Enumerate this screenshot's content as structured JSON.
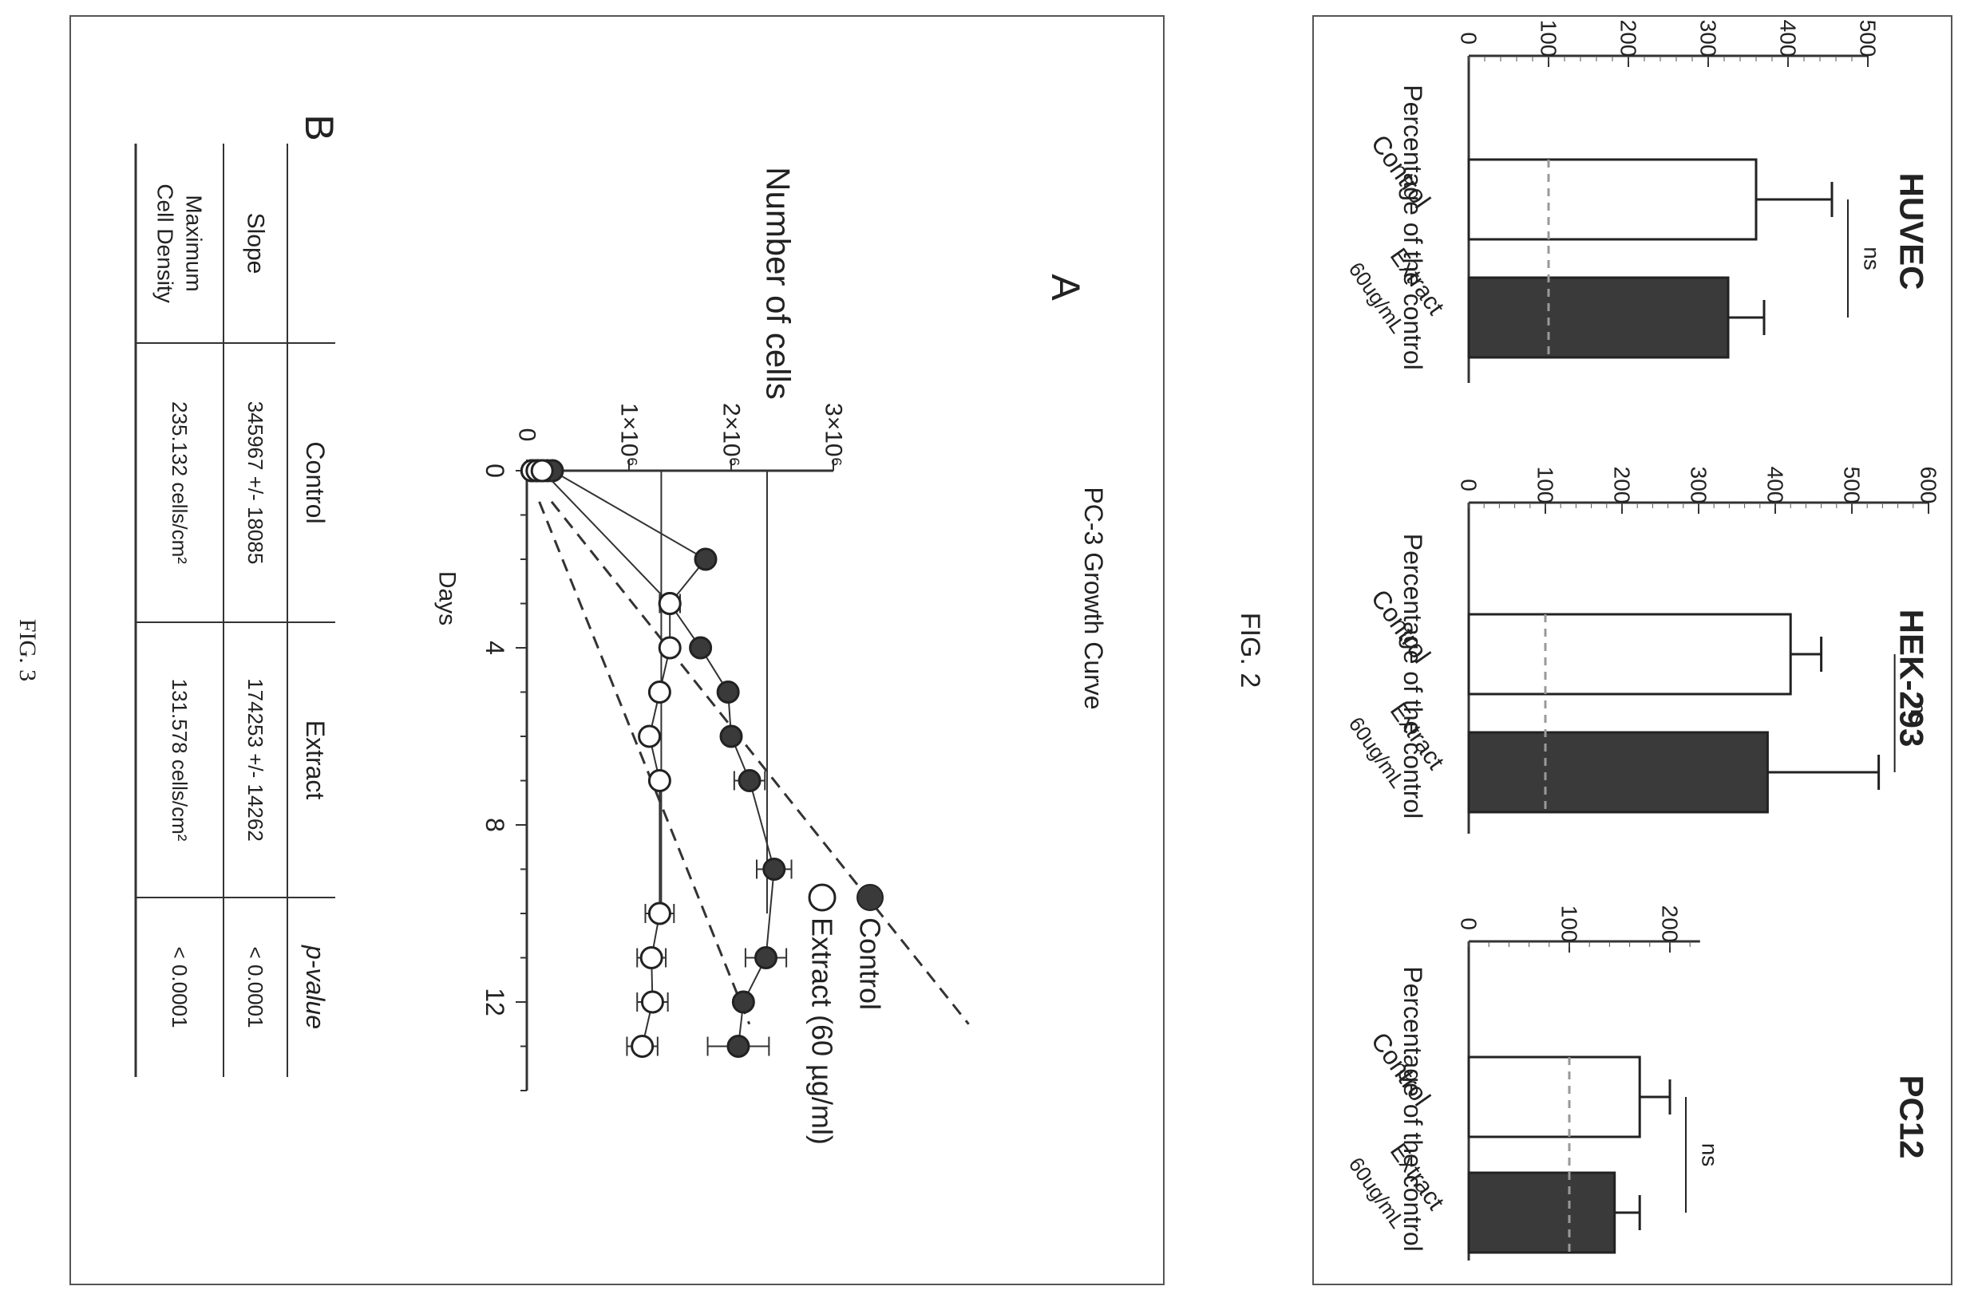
{
  "fig2": {
    "label": "FIG. 2",
    "y_axis_label": "Percentage of the control",
    "category_labels": [
      "Control",
      "Extract",
      "60ug/mL"
    ],
    "significance": "ns"
  },
  "fig3": {
    "label": "FIG. 3",
    "panel_a": "A",
    "panel_b": "B",
    "legend": {
      "control": "Control",
      "extract": "Extract (60 µg/ml)"
    },
    "table": {
      "headers": [
        "",
        "Control",
        "Extract",
        "p-value"
      ],
      "rows": [
        [
          "Slope",
          "345967 +/- 18085",
          "174253 +/- 14262",
          "< 0.0001"
        ],
        [
          "Maximum Cell Density",
          "235.132 cells/cm²",
          "131.578 cells/cm²",
          "< 0.0001"
        ]
      ]
    }
  },
  "chart_data": [
    {
      "type": "bar",
      "title": "HUVEC",
      "ylabel": "Percentage of the control",
      "categories": [
        "Control",
        "Extract 60ug/mL"
      ],
      "values": [
        360,
        325
      ],
      "errors": [
        95,
        45
      ],
      "yticks": [
        0,
        100,
        200,
        300,
        400,
        500
      ],
      "ylim": [
        0,
        500
      ],
      "reference_line": 100,
      "annotation": "ns",
      "colors": [
        "#ffffff",
        "#3a3a3a"
      ]
    },
    {
      "type": "bar",
      "title": "HEK-293",
      "ylabel": "Percentage of the control",
      "categories": [
        "Control",
        "Extract 60ug/mL"
      ],
      "values": [
        420,
        390
      ],
      "errors": [
        40,
        145
      ],
      "yticks": [
        0,
        100,
        200,
        300,
        400,
        500,
        600
      ],
      "ylim": [
        0,
        600
      ],
      "reference_line": 100,
      "annotation": "ns",
      "colors": [
        "#ffffff",
        "#3a3a3a"
      ]
    },
    {
      "type": "bar",
      "title": "PC12",
      "ylabel": "Percentage of the control",
      "categories": [
        "Control",
        "Extract 60ug/mL"
      ],
      "values": [
        170,
        145
      ],
      "errors": [
        30,
        25
      ],
      "yticks": [
        0,
        100,
        200
      ],
      "ylim": [
        0,
        230
      ],
      "reference_line": 100,
      "annotation": "ns",
      "colors": [
        "#ffffff",
        "#3a3a3a"
      ]
    },
    {
      "type": "scatter",
      "title": "PC-3 Growth Curve",
      "xlabel": "Days",
      "ylabel": "Number of cells",
      "xticks": [
        0,
        4,
        8,
        12
      ],
      "xlim": [
        0,
        14
      ],
      "yticks": [
        0,
        1000000,
        2000000,
        3000000
      ],
      "ytick_labels": [
        "0",
        "1×10⁶",
        "2×10⁶",
        "3×10⁶"
      ],
      "ylim": [
        0,
        3000000
      ],
      "legend_position": "right",
      "series": [
        {
          "name": "Control",
          "marker": "filled",
          "x": [
            0,
            0,
            0,
            0,
            0,
            2,
            3,
            4,
            5,
            6,
            7,
            9,
            11,
            12,
            13
          ],
          "y": [
            50000,
            100000,
            150000,
            200000,
            250000,
            1750000,
            1400000,
            1700000,
            1970000,
            2000000,
            2180000,
            2420000,
            2340000,
            2120000,
            2070000
          ],
          "errors": [
            0,
            0,
            0,
            0,
            0,
            0,
            0,
            0,
            0,
            0,
            150000,
            170000,
            200000,
            0,
            300000
          ]
        },
        {
          "name": "Extract (60 µg/ml)",
          "marker": "open",
          "x": [
            0,
            0,
            0,
            3,
            4,
            5,
            6,
            7,
            10,
            11,
            12,
            13
          ],
          "y": [
            50000,
            100000,
            150000,
            1400000,
            1400000,
            1300000,
            1200000,
            1300000,
            1300000,
            1220000,
            1230000,
            1130000
          ],
          "errors": [
            0,
            0,
            0,
            100000,
            0,
            0,
            0,
            0,
            140000,
            140000,
            150000,
            150000
          ]
        }
      ],
      "fits": [
        {
          "series": "Control",
          "slope": 345967,
          "max": 2351320
        },
        {
          "series": "Extract (60 µg/ml)",
          "slope": 174253,
          "max": 1315780
        }
      ]
    }
  ]
}
